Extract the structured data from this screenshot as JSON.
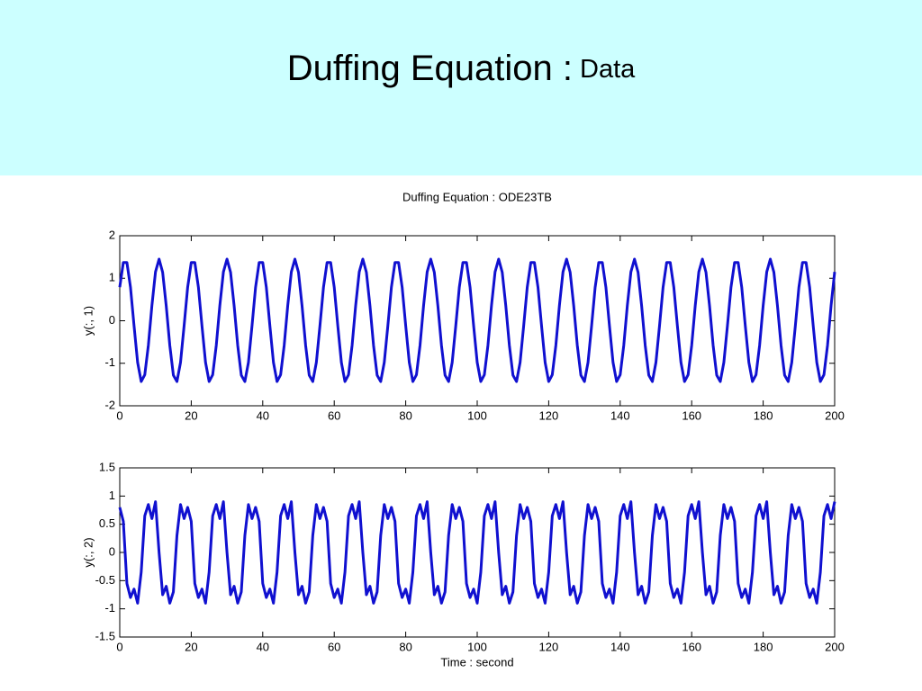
{
  "header": {
    "title": "Duffing Equation :",
    "subtitle": "Data"
  },
  "chart_data": [
    {
      "type": "line",
      "title": "Duffing Equation : ODE23TB",
      "ylabel": "y(:, 1)",
      "color": "#1010d0",
      "xlim": [
        0,
        200
      ],
      "xticks": [
        0,
        20,
        40,
        60,
        80,
        100,
        120,
        140,
        160,
        180,
        200
      ],
      "ylim": [
        -2,
        2
      ],
      "yticks": [
        -2,
        -1,
        0,
        1,
        2
      ],
      "grid": false,
      "x": [
        0,
        1,
        2,
        3,
        4,
        5,
        6,
        7,
        8,
        9,
        10,
        11,
        12,
        13,
        14,
        15,
        16,
        17,
        18,
        19,
        20,
        21,
        22,
        23,
        24,
        25,
        26,
        27,
        28,
        29,
        30,
        31,
        32,
        33,
        34,
        35,
        36,
        37,
        38,
        39,
        40,
        41,
        42,
        43,
        44,
        45,
        46,
        47,
        48,
        49,
        50,
        51,
        52,
        53,
        54,
        55,
        56,
        57,
        58,
        59,
        60,
        61,
        62,
        63,
        64,
        65,
        66,
        67,
        68,
        69,
        70,
        71,
        72,
        73,
        74,
        75,
        76,
        77,
        78,
        79,
        80,
        81,
        82,
        83,
        84,
        85,
        86,
        87,
        88,
        89,
        90,
        91,
        92,
        93,
        94,
        95,
        96,
        97,
        98,
        99,
        100,
        101,
        102,
        103,
        104,
        105,
        106,
        107,
        108,
        109,
        110,
        111,
        112,
        113,
        114,
        115,
        116,
        117,
        118,
        119,
        120,
        121,
        122,
        123,
        124,
        125,
        126,
        127,
        128,
        129,
        130,
        131,
        132,
        133,
        134,
        135,
        136,
        137,
        138,
        139,
        140,
        141,
        142,
        143,
        144,
        145,
        146,
        147,
        148,
        149,
        150,
        151,
        152,
        153,
        154,
        155,
        156,
        157,
        158,
        159,
        160,
        161,
        162,
        163,
        164,
        165,
        166,
        167,
        168,
        169,
        170,
        171,
        172,
        173,
        174,
        175,
        176,
        177,
        178,
        179,
        180,
        181,
        182,
        183,
        184,
        185,
        186,
        187,
        188,
        189,
        190,
        191,
        192,
        193,
        194,
        195,
        196,
        197,
        198,
        199,
        200
      ],
      "values": [
        0.79,
        1.37,
        1.37,
        0.79,
        -0.12,
        -0.98,
        -1.43,
        -1.27,
        -0.58,
        0.36,
        1.15,
        1.45,
        1.14,
        0.35,
        -0.58,
        -1.28,
        -1.43,
        -0.98,
        -0.12,
        0.79,
        1.37,
        1.37,
        0.79,
        -0.12,
        -0.98,
        -1.43,
        -1.27,
        -0.58,
        0.36,
        1.15,
        1.45,
        1.14,
        0.35,
        -0.58,
        -1.28,
        -1.43,
        -0.98,
        -0.12,
        0.79,
        1.37,
        1.37,
        0.79,
        -0.12,
        -0.98,
        -1.43,
        -1.27,
        -0.58,
        0.36,
        1.15,
        1.45,
        1.14,
        0.35,
        -0.58,
        -1.28,
        -1.43,
        -0.98,
        -0.12,
        0.79,
        1.37,
        1.37,
        0.79,
        -0.12,
        -0.98,
        -1.43,
        -1.27,
        -0.58,
        0.36,
        1.15,
        1.45,
        1.14,
        0.35,
        -0.58,
        -1.28,
        -1.43,
        -0.98,
        -0.12,
        0.79,
        1.37,
        1.37,
        0.79,
        -0.12,
        -0.98,
        -1.43,
        -1.27,
        -0.58,
        0.36,
        1.15,
        1.45,
        1.14,
        0.35,
        -0.58,
        -1.28,
        -1.43,
        -0.98,
        -0.12,
        0.79,
        1.37,
        1.37,
        0.79,
        -0.12,
        -0.98,
        -1.43,
        -1.27,
        -0.58,
        0.36,
        1.15,
        1.45,
        1.14,
        0.35,
        -0.58,
        -1.28,
        -1.43,
        -0.98,
        -0.12,
        0.79,
        1.37,
        1.37,
        0.79,
        -0.12,
        -0.98,
        -1.43,
        -1.27,
        -0.58,
        0.36,
        1.15,
        1.45,
        1.14,
        0.35,
        -0.58,
        -1.28,
        -1.43,
        -0.98,
        -0.12,
        0.79,
        1.37,
        1.37,
        0.79,
        -0.12,
        -0.98,
        -1.43,
        -1.27,
        -0.58,
        0.36,
        1.15,
        1.45,
        1.14,
        0.35,
        -0.58,
        -1.28,
        -1.43,
        -0.98,
        -0.12,
        0.79,
        1.37,
        1.37,
        0.79,
        -0.12,
        -0.98,
        -1.43,
        -1.27,
        -0.58,
        0.36,
        1.15,
        1.45,
        1.14,
        0.35,
        -0.58,
        -1.28,
        -1.43,
        -0.98,
        -0.12,
        0.79,
        1.37,
        1.37,
        0.79,
        -0.12,
        -0.98,
        -1.43,
        -1.27,
        -0.58,
        0.36,
        1.15,
        1.45,
        1.14,
        0.35,
        -0.58,
        -1.28,
        -1.43,
        -0.98,
        -0.12,
        0.79,
        1.37,
        1.37,
        0.79,
        -0.12,
        -0.98,
        -1.43,
        -1.27,
        -0.58,
        0.36,
        1.15
      ]
    },
    {
      "type": "line",
      "ylabel": "y(:, 2)",
      "xlabel": "Time : second",
      "color": "#1010d0",
      "xlim": [
        0,
        200
      ],
      "xticks": [
        0,
        20,
        40,
        60,
        80,
        100,
        120,
        140,
        160,
        180,
        200
      ],
      "ylim": [
        -1.5,
        1.5
      ],
      "yticks": [
        -1.5,
        -1,
        -0.5,
        0,
        0.5,
        1,
        1.5
      ],
      "grid": false,
      "x": [
        0,
        1,
        2,
        3,
        4,
        5,
        6,
        7,
        8,
        9,
        10,
        11,
        12,
        13,
        14,
        15,
        16,
        17,
        18,
        19,
        20,
        21,
        22,
        23,
        24,
        25,
        26,
        27,
        28,
        29,
        30,
        31,
        32,
        33,
        34,
        35,
        36,
        37,
        38,
        39,
        40,
        41,
        42,
        43,
        44,
        45,
        46,
        47,
        48,
        49,
        50,
        51,
        52,
        53,
        54,
        55,
        56,
        57,
        58,
        59,
        60,
        61,
        62,
        63,
        64,
        65,
        66,
        67,
        68,
        69,
        70,
        71,
        72,
        73,
        74,
        75,
        76,
        77,
        78,
        79,
        80,
        81,
        82,
        83,
        84,
        85,
        86,
        87,
        88,
        89,
        90,
        91,
        92,
        93,
        94,
        95,
        96,
        97,
        98,
        99,
        100,
        101,
        102,
        103,
        104,
        105,
        106,
        107,
        108,
        109,
        110,
        111,
        112,
        113,
        114,
        115,
        116,
        117,
        118,
        119,
        120,
        121,
        122,
        123,
        124,
        125,
        126,
        127,
        128,
        129,
        130,
        131,
        132,
        133,
        134,
        135,
        136,
        137,
        138,
        139,
        140,
        141,
        142,
        143,
        144,
        145,
        146,
        147,
        148,
        149,
        150,
        151,
        152,
        153,
        154,
        155,
        156,
        157,
        158,
        159,
        160,
        161,
        162,
        163,
        164,
        165,
        166,
        167,
        168,
        169,
        170,
        171,
        172,
        173,
        174,
        175,
        176,
        177,
        178,
        179,
        180,
        181,
        182,
        183,
        184,
        185,
        186,
        187,
        188,
        189,
        190,
        191,
        192,
        193,
        194,
        195,
        196,
        197,
        198,
        199,
        200
      ],
      "values": [
        0.8,
        0.55,
        -0.55,
        -0.8,
        -0.65,
        -0.9,
        -0.35,
        0.65,
        0.85,
        0.6,
        0.9,
        0,
        -0.75,
        -0.6,
        -0.9,
        -0.7,
        0.3,
        0.85,
        0.6,
        0.8,
        0.55,
        -0.55,
        -0.8,
        -0.65,
        -0.9,
        -0.35,
        0.65,
        0.85,
        0.6,
        0.9,
        0,
        -0.75,
        -0.6,
        -0.9,
        -0.7,
        0.3,
        0.85,
        0.6,
        0.8,
        0.55,
        -0.55,
        -0.8,
        -0.65,
        -0.9,
        -0.35,
        0.65,
        0.85,
        0.6,
        0.9,
        0,
        -0.75,
        -0.6,
        -0.9,
        -0.7,
        0.3,
        0.85,
        0.6,
        0.8,
        0.55,
        -0.55,
        -0.8,
        -0.65,
        -0.9,
        -0.35,
        0.65,
        0.85,
        0.6,
        0.9,
        0,
        -0.75,
        -0.6,
        -0.9,
        -0.7,
        0.3,
        0.85,
        0.6,
        0.8,
        0.55,
        -0.55,
        -0.8,
        -0.65,
        -0.9,
        -0.35,
        0.65,
        0.85,
        0.6,
        0.9,
        0,
        -0.75,
        -0.6,
        -0.9,
        -0.7,
        0.3,
        0.85,
        0.6,
        0.8,
        0.55,
        -0.55,
        -0.8,
        -0.65,
        -0.9,
        -0.35,
        0.65,
        0.85,
        0.6,
        0.9,
        0,
        -0.75,
        -0.6,
        -0.9,
        -0.7,
        0.3,
        0.85,
        0.6,
        0.8,
        0.55,
        -0.55,
        -0.8,
        -0.65,
        -0.9,
        -0.35,
        0.65,
        0.85,
        0.6,
        0.9,
        0,
        -0.75,
        -0.6,
        -0.9,
        -0.7,
        0.3,
        0.85,
        0.6,
        0.8,
        0.55,
        -0.55,
        -0.8,
        -0.65,
        -0.9,
        -0.35,
        0.65,
        0.85,
        0.6,
        0.9,
        0,
        -0.75,
        -0.6,
        -0.9,
        -0.7,
        0.3,
        0.85,
        0.6,
        0.8,
        0.55,
        -0.55,
        -0.8,
        -0.65,
        -0.9,
        -0.35,
        0.65,
        0.85,
        0.6,
        0.9,
        0,
        -0.75,
        -0.6,
        -0.9,
        -0.7,
        0.3,
        0.85,
        0.6,
        0.8,
        0.55,
        -0.55,
        -0.8,
        -0.65,
        -0.9,
        -0.35,
        0.65,
        0.85,
        0.6,
        0.9,
        0,
        -0.75,
        -0.6,
        -0.9,
        -0.7,
        0.3,
        0.85,
        0.6,
        0.8,
        0.55,
        -0.55,
        -0.8,
        -0.65,
        -0.9,
        -0.35,
        0.65,
        0.85,
        0.6,
        0.9
      ]
    }
  ]
}
